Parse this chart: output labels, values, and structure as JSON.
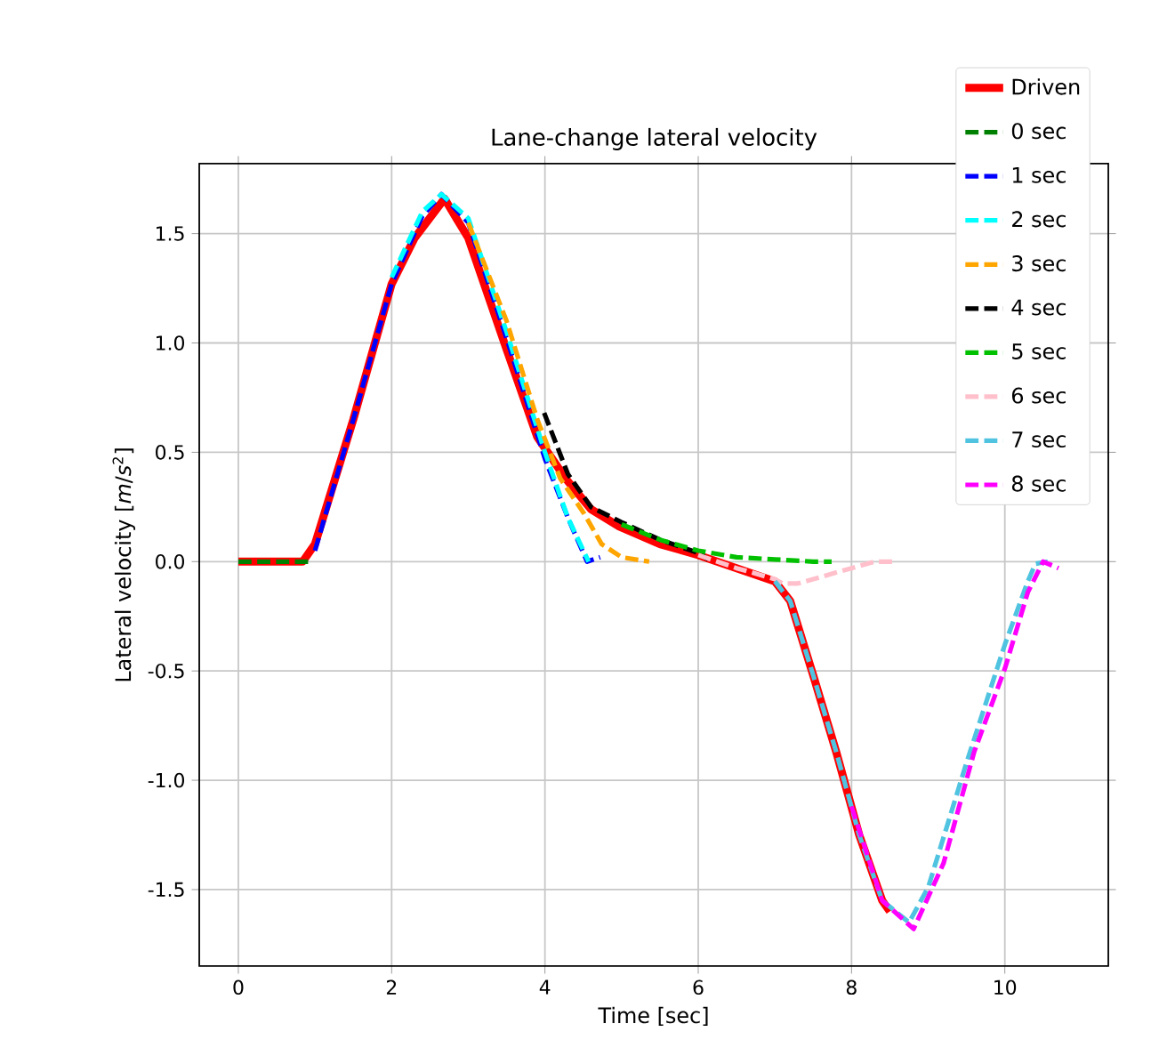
{
  "chart_data": {
    "type": "line",
    "title": "Lane-change lateral velocity",
    "xlabel": "Time [sec]",
    "ylabel": "Lateral velocity [*m*/*s*$^{2}$]",
    "xlim": [
      -0.51,
      11.35
    ],
    "ylim": [
      -1.85,
      1.82
    ],
    "xticks": [
      0,
      2,
      4,
      6,
      8,
      10
    ],
    "yticks": [
      -1.5,
      {
        "value": -1.0,
        "label": "-1.0"
      },
      -0.5,
      {
        "value": 0.0,
        "label": "0.0"
      },
      0.5,
      {
        "value": 1.0,
        "label": "1.0"
      },
      1.5
    ],
    "grid": true,
    "legend": "top right",
    "series": [
      {
        "name": "Driven",
        "color": "#ff0000",
        "line_style": "solid",
        "x": [
          0,
          0.84,
          1.0,
          1.5,
          2.0,
          2.3,
          2.69,
          3.0,
          3.5,
          3.9,
          4.27,
          4.6,
          4.97,
          5.5,
          6.0,
          6.5,
          7.0,
          7.2,
          7.5,
          7.8,
          8.1,
          8.4,
          8.5
        ],
        "values": [
          0,
          0,
          0.08,
          0.65,
          1.27,
          1.48,
          1.66,
          1.48,
          0.97,
          0.57,
          0.38,
          0.24,
          0.16,
          0.08,
          0.03,
          -0.03,
          -0.09,
          -0.18,
          -0.52,
          -0.87,
          -1.25,
          -1.55,
          -1.6
        ]
      },
      {
        "name": "0 sec",
        "color": "#008000",
        "line_style": "dashed",
        "x": [
          0,
          0.93
        ],
        "values": [
          0,
          0
        ]
      },
      {
        "name": "1 sec",
        "color": "#0000ff",
        "line_style": "dashed",
        "x": [
          1.0,
          1.5,
          2.0,
          2.4,
          2.65,
          3.0,
          3.5,
          4.0,
          4.3,
          4.55,
          4.72
        ],
        "values": [
          0.05,
          0.65,
          1.27,
          1.58,
          1.68,
          1.55,
          1.02,
          0.47,
          0.2,
          0.0,
          0.02
        ]
      },
      {
        "name": "2 sec",
        "color": "#00ffff",
        "line_style": "dashed",
        "x": [
          2.0,
          2.4,
          2.65,
          3.0,
          3.5,
          4.0,
          4.3,
          4.57
        ],
        "values": [
          1.3,
          1.6,
          1.68,
          1.57,
          1.05,
          0.5,
          0.2,
          0.0
        ]
      },
      {
        "name": "3 sec",
        "color": "#ffa500",
        "line_style": "dashed",
        "x": [
          3.0,
          3.5,
          3.9,
          4.2,
          4.51,
          4.74,
          5.0,
          5.36
        ],
        "values": [
          1.55,
          1.1,
          0.65,
          0.38,
          0.22,
          0.08,
          0.02,
          0.0
        ]
      },
      {
        "name": "4 sec",
        "color": "#000000",
        "line_style": "dashed",
        "x": [
          3.99,
          4.3,
          4.6,
          5.0,
          5.5,
          6.0,
          6.13
        ],
        "values": [
          0.68,
          0.4,
          0.25,
          0.18,
          0.1,
          0.04,
          0.01
        ]
      },
      {
        "name": "5 sec",
        "color": "#00c000",
        "line_style": "dashed",
        "x": [
          5.0,
          5.5,
          6.0,
          6.5,
          7.0,
          7.5,
          7.74
        ],
        "values": [
          0.17,
          0.1,
          0.05,
          0.02,
          0.01,
          0.0,
          0.0
        ]
      },
      {
        "name": "6 sec",
        "color": "#ffc0cb",
        "line_style": "dashed",
        "x": [
          6.0,
          6.5,
          7.0,
          7.1,
          7.3,
          7.6,
          8.0,
          8.3,
          8.57
        ],
        "values": [
          0.03,
          -0.03,
          -0.08,
          -0.1,
          -0.1,
          -0.07,
          -0.03,
          0.0,
          0.0
        ]
      },
      {
        "name": "7 sec",
        "color": "#4fc3e0",
        "line_style": "dashed",
        "x": [
          7.0,
          7.2,
          7.5,
          7.8,
          8.1,
          8.4,
          8.75,
          9.0,
          9.5,
          10.0,
          10.3,
          10.4,
          10.56
        ],
        "values": [
          -0.09,
          -0.18,
          -0.52,
          -0.87,
          -1.25,
          -1.55,
          -1.65,
          -1.49,
          -0.92,
          -0.38,
          -0.09,
          -0.01,
          0.0
        ]
      },
      {
        "name": "8 sec",
        "color": "#ff00ff",
        "line_style": "dashed",
        "x": [
          8.0,
          8.4,
          8.81,
          9.2,
          9.6,
          10.0,
          10.3,
          10.5,
          10.7
        ],
        "values": [
          -1.12,
          -1.55,
          -1.68,
          -1.38,
          -0.87,
          -0.49,
          -0.14,
          0.0,
          -0.03
        ]
      }
    ]
  }
}
